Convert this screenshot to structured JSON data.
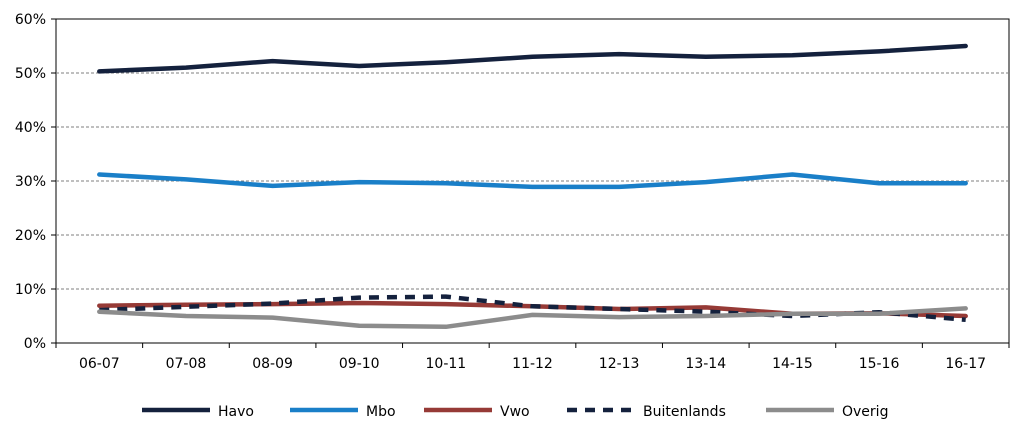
{
  "chart_data": {
    "type": "line",
    "title": "",
    "xlabel": "",
    "ylabel": "",
    "categories": [
      "06-07",
      "07-08",
      "08-09",
      "09-10",
      "10-11",
      "11-12",
      "12-13",
      "13-14",
      "14-15",
      "15-16",
      "16-17"
    ],
    "y_ticks": [
      "0%",
      "10%",
      "20%",
      "30%",
      "40%",
      "50%",
      "60%"
    ],
    "ylim": [
      0,
      60
    ],
    "grid": true,
    "legend_position": "bottom",
    "series": [
      {
        "name": "Havo",
        "color": "#14213d",
        "style": "solid",
        "values": [
          50.3,
          51.0,
          52.2,
          51.3,
          52.0,
          53.0,
          53.5,
          53.0,
          53.3,
          54.0,
          55.0
        ]
      },
      {
        "name": "Mbo",
        "color": "#1a7fc8",
        "style": "solid",
        "values": [
          31.2,
          30.3,
          29.1,
          29.8,
          29.6,
          28.9,
          28.9,
          29.8,
          31.2,
          29.6,
          29.6
        ]
      },
      {
        "name": "Vwo",
        "color": "#963a36",
        "style": "solid",
        "values": [
          6.9,
          7.1,
          7.2,
          7.4,
          7.2,
          6.8,
          6.3,
          6.6,
          5.4,
          5.5,
          5.0
        ]
      },
      {
        "name": "Buitenlands",
        "color": "#14213d",
        "style": "dashed",
        "values": [
          6.1,
          6.7,
          7.3,
          8.4,
          8.6,
          6.8,
          6.3,
          5.8,
          5.0,
          5.7,
          4.3
        ]
      },
      {
        "name": "Overig",
        "color": "#8c8c8c",
        "style": "solid",
        "values": [
          5.8,
          5.0,
          4.7,
          3.2,
          3.0,
          5.2,
          4.8,
          5.0,
          5.4,
          5.4,
          6.4
        ]
      }
    ]
  }
}
